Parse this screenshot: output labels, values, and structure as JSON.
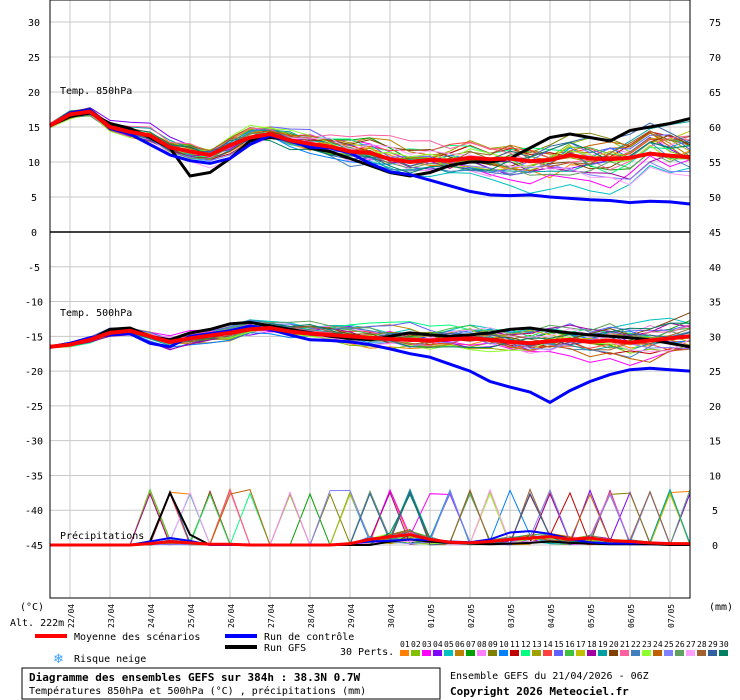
{
  "chart_data": {
    "type": "line",
    "title": "Diagramme des ensembles GEFS sur 384h : 38.3N 0.7W",
    "subtitle": "Températures 850hPa et 500hPa (°C) , précipitations (mm)",
    "run_info": "Ensemble GEFS du 21/04/2026 - 06Z",
    "copyright": "Copyright 2026 Meteociel.fr",
    "altitude": "Alt. 222m",
    "x_labels": [
      "22/04",
      "23/04",
      "24/04",
      "25/04",
      "26/04",
      "27/04",
      "28/04",
      "29/04",
      "30/04",
      "01/05",
      "02/05",
      "03/05",
      "04/05",
      "05/05",
      "06/05",
      "07/05"
    ],
    "x_start_day": 21.5,
    "x_end_day": 37.5,
    "left_unit": "(°C)",
    "right_unit": "(mm)",
    "left_ticks": [
      30,
      25,
      20,
      15,
      10,
      5,
      0,
      -5,
      -10,
      -15,
      -20,
      -25,
      -30,
      -35,
      -40,
      -45
    ],
    "right_ticks_850": [
      75,
      70,
      65,
      60,
      55,
      50
    ],
    "right_ticks_precip": [
      45,
      40,
      35,
      30,
      25,
      20,
      15,
      10,
      5,
      0
    ],
    "panels": [
      {
        "label": "Temp. 850hPa",
        "ylim": [
          0,
          32
        ]
      },
      {
        "label": "Temp. 500hPa",
        "ylim": [
          -45,
          0
        ]
      },
      {
        "label": "Précipitations",
        "ylim": [
          0,
          45
        ]
      }
    ],
    "series": [
      {
        "name": "Moyenne des scénarios",
        "t850": [
          15.2,
          16.8,
          17.2,
          15.0,
          14.3,
          13.8,
          12.1,
          11.5,
          11.0,
          12.4,
          13.5,
          14.0,
          13.1,
          12.6,
          12.2,
          11.5,
          11.3,
          10.4,
          10.0,
          10.3,
          10.2,
          10.6,
          10.4,
          10.5,
          10.1,
          10.3,
          11.0,
          10.5,
          10.4,
          10.6,
          11.2,
          10.9,
          10.7
        ],
        "t500": [
          -16.5,
          -16.2,
          -15.5,
          -14.5,
          -14.2,
          -15.0,
          -15.8,
          -15.3,
          -14.9,
          -14.5,
          -14.0,
          -13.8,
          -14.3,
          -14.6,
          -14.8,
          -15.0,
          -15.2,
          -15.4,
          -15.5,
          -15.6,
          -15.4,
          -15.3,
          -15.5,
          -15.8,
          -16.0,
          -15.7,
          -15.5,
          -15.8,
          -15.6,
          -15.9,
          -15.6,
          -15.3,
          -15.0
        ],
        "precip": [
          0,
          0,
          0,
          0,
          0,
          0.2,
          0.5,
          0.3,
          0.1,
          0.1,
          0,
          0,
          0,
          0,
          0,
          0.2,
          0.8,
          1.2,
          1.5,
          0.8,
          0.4,
          0.3,
          0.5,
          0.8,
          1.0,
          1.2,
          0.8,
          1.0,
          0.6,
          0.5,
          0.3,
          0.2,
          0.2
        ]
      },
      {
        "name": "Run de contrôle",
        "t850": [
          15.2,
          17.0,
          17.5,
          14.8,
          14.0,
          12.5,
          11.0,
          10.2,
          9.8,
          10.5,
          12.5,
          13.8,
          13.0,
          12.1,
          12.0,
          11.3,
          9.8,
          8.6,
          8.2,
          7.4,
          6.6,
          5.8,
          5.3,
          5.2,
          5.3,
          5.0,
          4.8,
          4.6,
          4.5,
          4.2,
          4.4,
          4.3,
          4.0
        ],
        "t500": [
          -16.5,
          -16.0,
          -15.2,
          -14.8,
          -14.6,
          -16.0,
          -16.5,
          -15.0,
          -14.6,
          -14.2,
          -13.5,
          -14.0,
          -14.8,
          -15.5,
          -15.6,
          -15.8,
          -16.2,
          -16.8,
          -17.5,
          -18.0,
          -19.0,
          -20.0,
          -21.5,
          -22.3,
          -23.0,
          -24.5,
          -22.8,
          -21.5,
          -20.5,
          -19.8,
          -19.6,
          -19.8,
          -20.0
        ],
        "precip": [
          0,
          0,
          0,
          0,
          0,
          0.5,
          1.0,
          0.6,
          0,
          0,
          0,
          0,
          0,
          0,
          0,
          0.2,
          0.5,
          0.6,
          0.8,
          0.7,
          0.5,
          0.4,
          0.8,
          1.8,
          2.0,
          1.6,
          0.8,
          0.4,
          0.2,
          0.2,
          0.3,
          0.2,
          0.2
        ]
      },
      {
        "name": "Run GFS",
        "t850": [
          15.2,
          16.5,
          17.0,
          15.5,
          14.8,
          13.5,
          12.0,
          8.0,
          8.5,
          10.5,
          13.0,
          13.5,
          13.2,
          12.0,
          11.5,
          10.5,
          9.5,
          8.5,
          8.0,
          8.5,
          9.5,
          10.0,
          10.0,
          10.5,
          12.0,
          13.5,
          14.0,
          13.5,
          13.0,
          14.5,
          15.0,
          15.5,
          16.2
        ],
        "t500": [
          -16.5,
          -16.0,
          -15.5,
          -14.0,
          -13.8,
          -15.0,
          -15.5,
          -14.5,
          -14.0,
          -13.2,
          -13.0,
          -13.5,
          -14.0,
          -14.5,
          -15.0,
          -15.3,
          -15.5,
          -15.0,
          -14.5,
          -14.8,
          -15.0,
          -14.8,
          -14.5,
          -14.0,
          -13.8,
          -14.2,
          -14.5,
          -14.8,
          -15.0,
          -15.2,
          -15.5,
          -16.0,
          -16.5
        ],
        "precip": [
          0,
          0,
          0,
          0,
          0,
          0.5,
          7.5,
          1.5,
          0,
          0,
          0,
          0,
          0,
          0,
          0,
          0,
          0,
          0.5,
          0.8,
          0.5,
          0.3,
          0.2,
          0.1,
          0.2,
          0.3,
          0.5,
          0.3,
          0.2,
          0.1,
          0.1,
          0.1,
          0,
          0
        ]
      }
    ],
    "legend": {
      "mean": "Moyenne des scénarios",
      "control": "Run de contrôle",
      "gfs": "Run GFS",
      "snow": "Risque neige",
      "perts_label": "30 Perts.",
      "perts": [
        "01",
        "02",
        "03",
        "04",
        "05",
        "06",
        "07",
        "08",
        "09",
        "10",
        "11",
        "12",
        "13",
        "14",
        "15",
        "16",
        "17",
        "18",
        "19",
        "20",
        "21",
        "22",
        "23",
        "24",
        "25",
        "26",
        "27",
        "28",
        "29",
        "30"
      ]
    },
    "colors": {
      "mean": "#ff0000",
      "control": "#0000ff",
      "gfs": "#000000",
      "perts": [
        "#ff8000",
        "#80c000",
        "#ff00ff",
        "#8000ff",
        "#00c0c0",
        "#c08000",
        "#00a000",
        "#ff80ff",
        "#808000",
        "#0080ff",
        "#c00000",
        "#00ff80",
        "#a0a000",
        "#ff4040",
        "#6060ff",
        "#40c040",
        "#c0c000",
        "#a000a0",
        "#00a0a0",
        "#804000",
        "#ff60a0",
        "#4080c0",
        "#90ff30",
        "#c06000",
        "#8080ff",
        "#60a060",
        "#ffa0ff",
        "#a06030",
        "#3060a0",
        "#008060"
      ]
    }
  }
}
